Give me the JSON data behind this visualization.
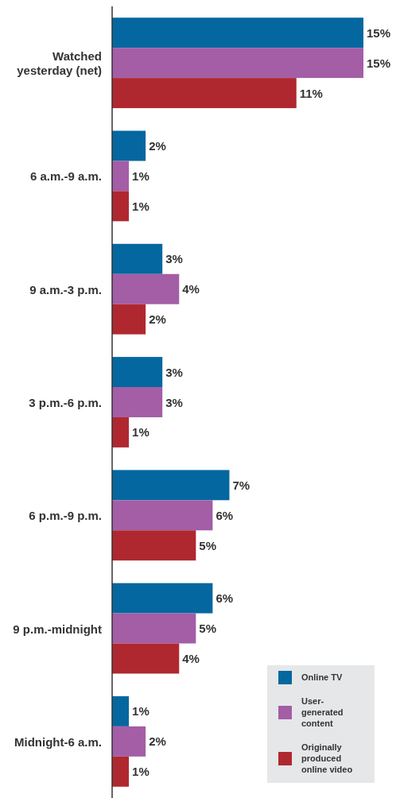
{
  "chart_data": {
    "type": "bar",
    "orientation": "horizontal",
    "legend": "bottom right",
    "categories": [
      "Watched yesterday (net)",
      "6 a.m.-9 a.m.",
      "9 a.m.-3 p.m.",
      "3 p.m.-6 p.m.",
      "6 p.m.-9 p.m.",
      "9 p.m.-midnight",
      "Midnight-6 a.m."
    ],
    "series": [
      {
        "name": "Online TV",
        "color": "#0567a0",
        "values": [
          15,
          2,
          3,
          3,
          7,
          6,
          1
        ],
        "value_labels": [
          "15%",
          "2%",
          "3%",
          "3%",
          "7%",
          "6%",
          "1%"
        ]
      },
      {
        "name": "User-generated content",
        "color": "#a35ea6",
        "values": [
          15,
          1,
          4,
          3,
          6,
          5,
          2
        ],
        "value_labels": [
          "15%",
          "1%",
          "4%",
          "3%",
          "6%",
          "5%",
          "2%"
        ]
      },
      {
        "name": "Originally produced online video",
        "color": "#b0282f",
        "values": [
          11,
          1,
          2,
          1,
          5,
          4,
          1
        ],
        "value_labels": [
          "11%",
          "1%",
          "2%",
          "1%",
          "5%",
          "4%",
          "1%"
        ]
      }
    ]
  }
}
